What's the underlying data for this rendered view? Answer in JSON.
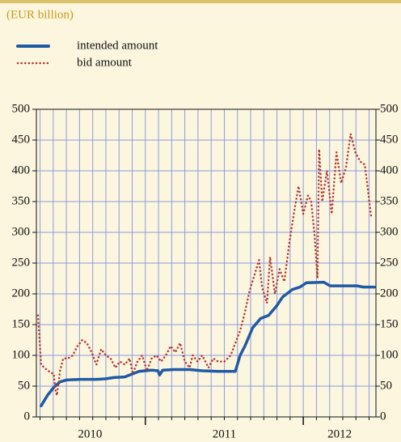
{
  "chart_data": {
    "type": "line",
    "subtitle": "(EUR billion)",
    "xlim": [
      2010.31,
      2012.46
    ],
    "xticks": [
      {
        "value": 2010.65,
        "label": "2010"
      },
      {
        "value": 2011.5,
        "label": "2011"
      },
      {
        "value": 2012.23,
        "label": "2012"
      }
    ],
    "ylim": [
      0,
      500
    ],
    "yticks": [
      0,
      50,
      100,
      150,
      200,
      250,
      300,
      350,
      400,
      450,
      500
    ],
    "y2lim": [
      0,
      500
    ],
    "y2ticks": [
      0,
      50,
      100,
      150,
      200,
      250,
      300,
      350,
      400,
      450,
      500
    ],
    "grid": true,
    "series": [
      {
        "name": "intended amount",
        "color": "#1f5aa6",
        "style": "solid",
        "x": [
          2010.34,
          2010.38,
          2010.42,
          2010.46,
          2010.5,
          2010.59,
          2010.69,
          2010.75,
          2010.8,
          2010.87,
          2010.92,
          2010.96,
          2011.0,
          2011.04,
          2011.08,
          2011.09,
          2011.11,
          2011.18,
          2011.28,
          2011.36,
          2011.46,
          2011.57,
          2011.6,
          2011.63,
          2011.68,
          2011.73,
          2011.78,
          2011.83,
          2011.87,
          2011.93,
          2011.98,
          2012.02,
          2012.13,
          2012.17,
          2012.34,
          2012.38,
          2012.45
        ],
        "values": [
          18,
          35,
          48,
          57,
          60,
          61,
          61,
          62,
          64,
          65,
          70,
          74,
          75,
          76,
          75,
          68,
          76,
          77,
          77,
          75,
          74,
          74,
          100,
          115,
          145,
          160,
          165,
          180,
          195,
          207,
          211,
          218,
          219,
          213,
          213,
          211,
          211
        ]
      },
      {
        "name": "bid amount",
        "color": "#b5362f",
        "style": "dotted",
        "x": [
          2010.32,
          2010.34,
          2010.37,
          2010.4,
          2010.42,
          2010.43,
          2010.44,
          2010.46,
          2010.48,
          2010.51,
          2010.54,
          2010.57,
          2010.6,
          2010.63,
          2010.66,
          2010.69,
          2010.72,
          2010.75,
          2010.78,
          2010.81,
          2010.84,
          2010.87,
          2010.9,
          2010.92,
          2010.95,
          2010.98,
          2011.01,
          2011.04,
          2011.07,
          2011.1,
          2011.13,
          2011.16,
          2011.19,
          2011.22,
          2011.25,
          2011.28,
          2011.3,
          2011.33,
          2011.36,
          2011.4,
          2011.43,
          2011.46,
          2011.5,
          2011.54,
          2011.57,
          2011.6,
          2011.63,
          2011.66,
          2011.69,
          2011.72,
          2011.74,
          2011.77,
          2011.79,
          2011.82,
          2011.85,
          2011.88,
          2011.91,
          2011.94,
          2011.97,
          2012.0,
          2012.03,
          2012.05,
          2012.07,
          2012.09,
          2012.1,
          2012.12,
          2012.15,
          2012.18,
          2012.21,
          2012.24,
          2012.27,
          2012.3,
          2012.33,
          2012.36,
          2012.39,
          2012.43
        ],
        "values": [
          165,
          85,
          78,
          72,
          70,
          45,
          35,
          75,
          95,
          95,
          100,
          115,
          125,
          120,
          105,
          85,
          110,
          100,
          95,
          80,
          90,
          85,
          95,
          70,
          90,
          100,
          75,
          95,
          100,
          90,
          100,
          115,
          105,
          120,
          90,
          80,
          100,
          90,
          100,
          80,
          95,
          90,
          90,
          100,
          120,
          140,
          170,
          205,
          230,
          255,
          210,
          185,
          260,
          200,
          240,
          220,
          280,
          330,
          375,
          330,
          360,
          350,
          300,
          225,
          435,
          350,
          400,
          330,
          430,
          380,
          405,
          460,
          430,
          415,
          410,
          325
        ]
      }
    ]
  }
}
